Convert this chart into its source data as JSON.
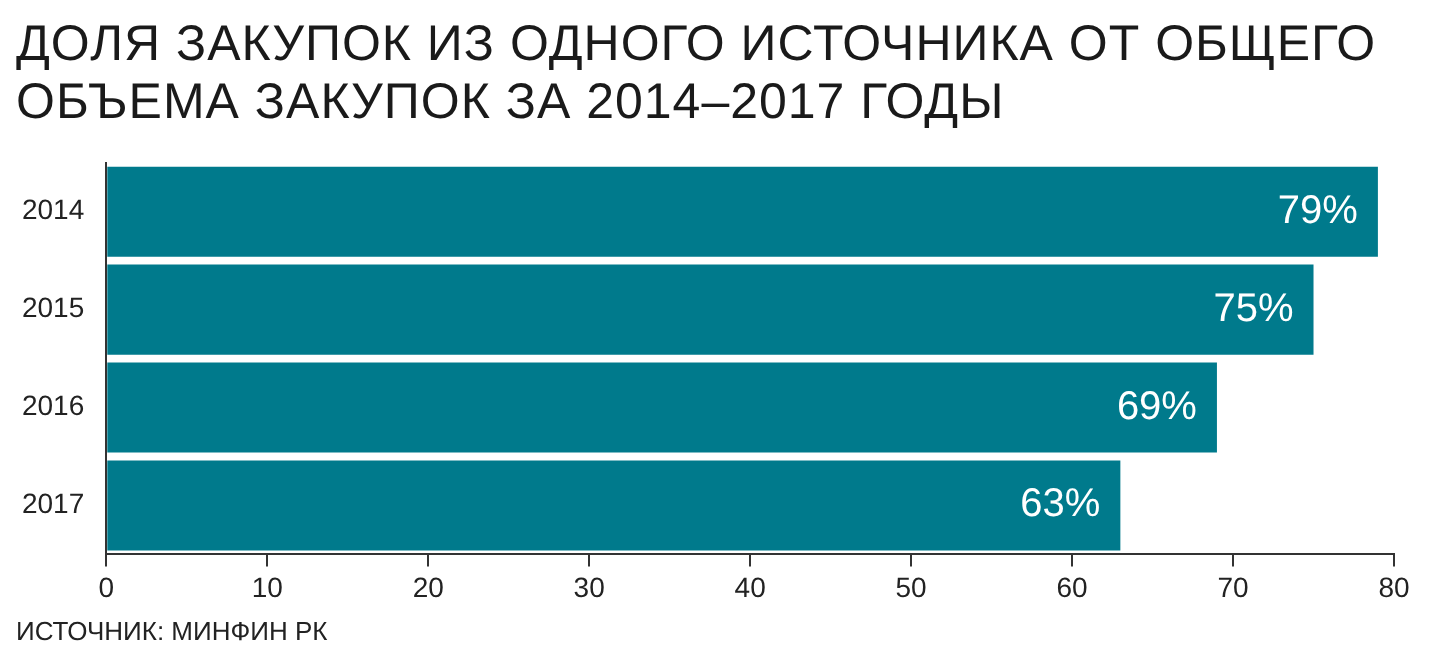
{
  "chart_data": {
    "type": "bar",
    "orientation": "horizontal",
    "title": "ДОЛЯ ЗАКУПОК ИЗ ОДНОГО ИСТОЧНИКА ОТ ОБЩЕГО ОБЪЕМА ЗАКУПОК ЗА 2014–2017 ГОДЫ",
    "categories": [
      "2014",
      "2015",
      "2016",
      "2017"
    ],
    "values": [
      79,
      75,
      69,
      63
    ],
    "value_labels": [
      "79%",
      "75%",
      "69%",
      "63%"
    ],
    "color": "#007a8c",
    "xlim": [
      0,
      80
    ],
    "xticks": [
      0,
      10,
      20,
      30,
      40,
      50,
      60,
      70,
      80
    ],
    "grid": false,
    "legend": false,
    "annotations": [
      "ИСТОЧНИК: МИНФИН РК"
    ]
  }
}
